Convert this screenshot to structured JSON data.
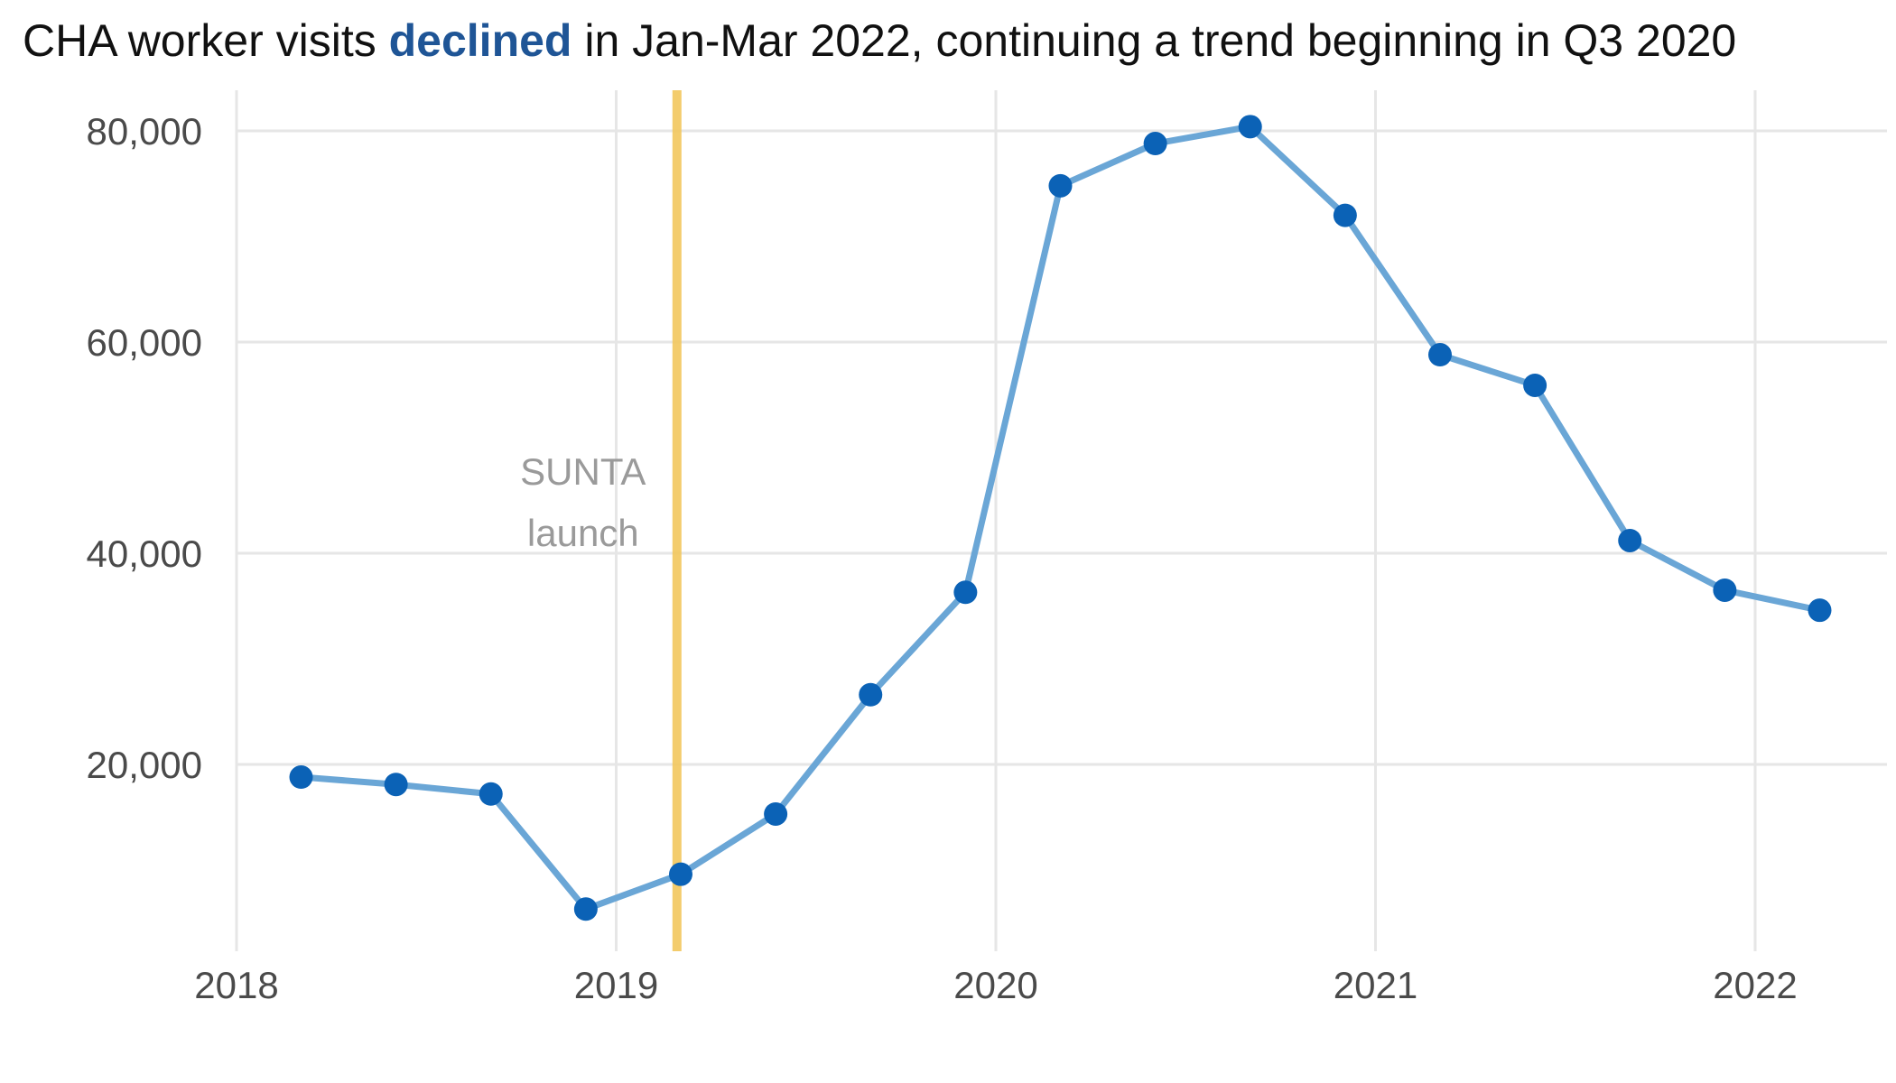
{
  "title": {
    "prefix": "CHA worker visits ",
    "highlight": "declined",
    "suffix": " in Jan-Mar 2022, continuing a trend beginning in Q3 2020"
  },
  "colors": {
    "highlight": "#1f5596",
    "line": "#6aa6d6",
    "point": "#0b62b6",
    "annotation_band": "#f2c75c",
    "grid": "#e6e6e6",
    "tick_text": "#4a4a4a",
    "annotation_text": "#9a9a9a"
  },
  "chart_data": {
    "type": "line",
    "title": "CHA worker visits declined in Jan-Mar 2022, continuing a trend beginning in Q3 2020",
    "xlabel": "",
    "ylabel": "",
    "x_ticks": [
      "2018",
      "2019",
      "2020",
      "2021",
      "2022"
    ],
    "y_ticks": [
      "20,000",
      "40,000",
      "60,000",
      "80,000"
    ],
    "xlim": [
      2018.0,
      2022.36
    ],
    "ylim": [
      3000,
      84000
    ],
    "grid": true,
    "legend": "none",
    "series": [
      {
        "x": [
          2018.17,
          2018.42,
          2018.67,
          2018.92,
          2019.17,
          2019.42,
          2019.67,
          2019.92,
          2020.17,
          2020.42,
          2020.67,
          2020.92,
          2021.17,
          2021.42,
          2021.67,
          2021.92,
          2022.17
        ],
        "values": [
          18800,
          18100,
          17200,
          6300,
          9600,
          15300,
          26600,
          36300,
          74800,
          78800,
          80400,
          72000,
          58800,
          55900,
          41200,
          36500,
          34600
        ]
      }
    ],
    "annotations": [
      {
        "x": 2019.16,
        "label_lines": [
          "SUNTA",
          "launch"
        ]
      }
    ]
  }
}
